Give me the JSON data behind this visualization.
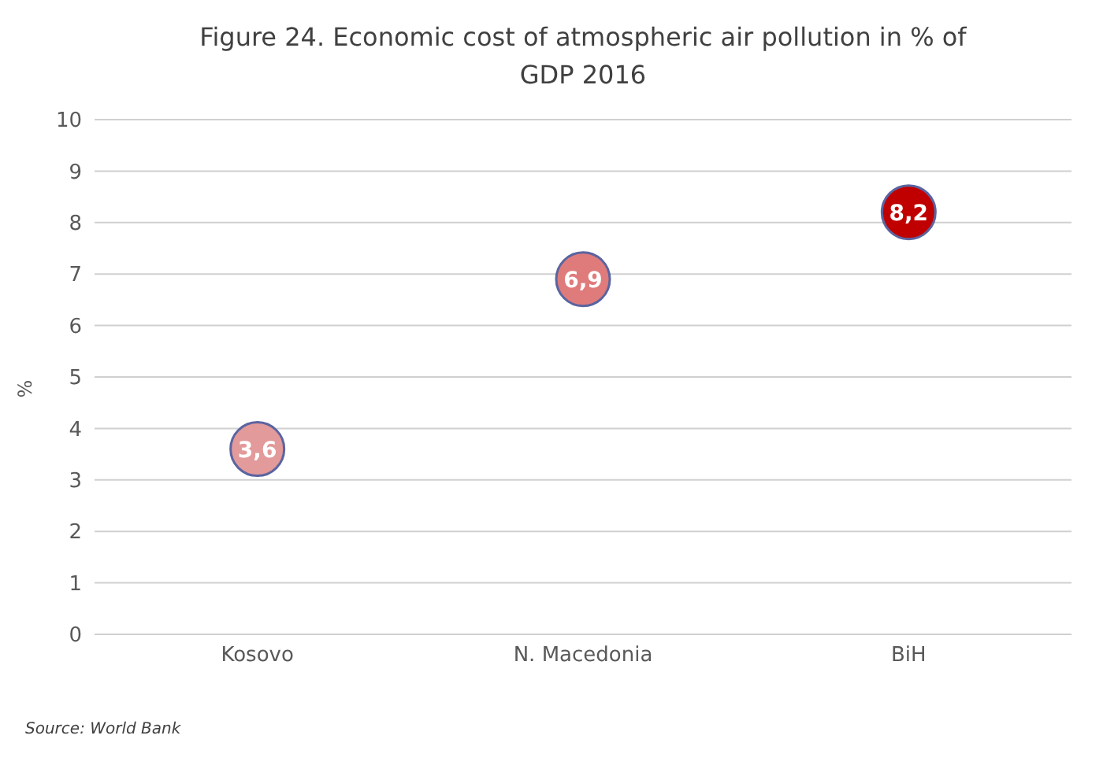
{
  "chart_data": {
    "type": "scatter",
    "title": "Figure 24. Economic cost of atmospheric air pollution in % of GDP 2016",
    "ylabel": "%",
    "categories": [
      "Kosovo",
      "N. Macedonia",
      "BiH"
    ],
    "values": [
      3.6,
      6.9,
      8.2
    ],
    "colors": [
      "#e39a9a",
      "#df7b7b",
      "#c00000"
    ],
    "value_labels": [
      "3,6",
      "6,9",
      "8,2"
    ],
    "ylim": [
      0,
      10
    ],
    "yticks": [
      0,
      1,
      2,
      3,
      4,
      5,
      6,
      7,
      8,
      9,
      10
    ],
    "grid": "y",
    "marker": "circle",
    "annotations": [
      "Source: World Bank"
    ]
  }
}
